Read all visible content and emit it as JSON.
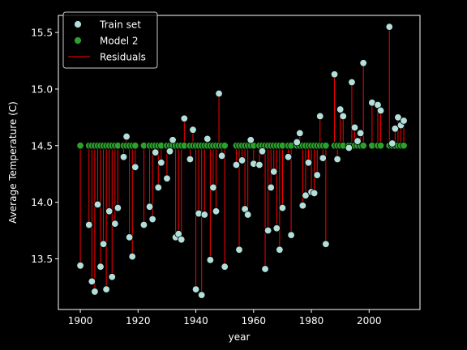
{
  "chart_data": {
    "type": "scatter",
    "title": "",
    "xlabel": "year",
    "ylabel": "Average Temperature (C)",
    "xlim": [
      1892.4,
      2017.6
    ],
    "ylim": [
      13.052,
      15.651
    ],
    "xticks": [
      1900,
      1920,
      1940,
      1960,
      1980,
      2000
    ],
    "yticks": [
      13.5,
      14.0,
      14.5,
      15.0,
      15.5
    ],
    "grid": false,
    "legend_position": "top-left",
    "model_value": 14.5,
    "legend": [
      {
        "label": "Train set"
      },
      {
        "label": "Model 2"
      },
      {
        "label": "Residuals"
      }
    ],
    "colors": {
      "background": "#000000",
      "train_point": "#b2dfdb",
      "model_point": "#2ca02c",
      "residual_line": "#ff0000",
      "text": "#ffffff"
    },
    "series": [
      {
        "name": "Train set",
        "x": [
          1900,
          1903,
          1904,
          1905,
          1906,
          1907,
          1908,
          1909,
          1910,
          1911,
          1912,
          1913,
          1915,
          1916,
          1917,
          1918,
          1919,
          1922,
          1924,
          1925,
          1926,
          1927,
          1928,
          1930,
          1931,
          1932,
          1933,
          1934,
          1935,
          1936,
          1938,
          1939,
          1940,
          1941,
          1942,
          1943,
          1944,
          1945,
          1946,
          1947,
          1948,
          1949,
          1950,
          1954,
          1955,
          1956,
          1957,
          1958,
          1959,
          1960,
          1962,
          1963,
          1964,
          1965,
          1966,
          1967,
          1968,
          1969,
          1970,
          1972,
          1973,
          1975,
          1976,
          1977,
          1978,
          1979,
          1980,
          1981,
          1982,
          1983,
          1984,
          1985,
          1988,
          1989,
          1990,
          1991,
          1993,
          1994,
          1995,
          1996,
          1997,
          1998,
          2001,
          2003,
          2004,
          2007,
          2008,
          2009,
          2010,
          2011,
          2012
        ],
        "y": [
          13.44,
          13.8,
          13.3,
          13.21,
          13.98,
          13.43,
          13.63,
          13.23,
          13.92,
          13.34,
          13.81,
          13.95,
          14.4,
          14.58,
          13.69,
          13.52,
          14.31,
          13.8,
          13.96,
          13.85,
          14.44,
          14.13,
          14.35,
          14.21,
          14.45,
          14.55,
          13.69,
          13.72,
          13.67,
          14.74,
          14.38,
          14.64,
          13.23,
          13.9,
          13.18,
          13.89,
          14.56,
          13.49,
          14.13,
          13.92,
          14.96,
          14.41,
          13.43,
          14.33,
          13.58,
          14.37,
          13.94,
          13.89,
          14.55,
          14.34,
          14.33,
          14.45,
          13.41,
          13.75,
          14.13,
          14.27,
          13.77,
          13.58,
          13.95,
          14.4,
          13.71,
          14.53,
          14.61,
          13.97,
          14.06,
          14.35,
          14.09,
          14.08,
          14.24,
          14.76,
          14.39,
          13.63,
          15.13,
          14.38,
          14.82,
          14.76,
          14.48,
          15.06,
          14.66,
          14.54,
          14.61,
          15.23,
          14.88,
          14.86,
          14.81,
          15.55,
          14.52,
          14.65,
          14.75,
          14.68,
          14.72
        ]
      },
      {
        "name": "Model 2",
        "x": [
          1900,
          1903,
          1904,
          1905,
          1906,
          1907,
          1908,
          1909,
          1910,
          1911,
          1912,
          1913,
          1915,
          1916,
          1917,
          1918,
          1919,
          1922,
          1924,
          1925,
          1926,
          1927,
          1928,
          1930,
          1931,
          1932,
          1933,
          1934,
          1935,
          1936,
          1938,
          1939,
          1940,
          1941,
          1942,
          1943,
          1944,
          1945,
          1946,
          1947,
          1948,
          1949,
          1950,
          1954,
          1955,
          1956,
          1957,
          1958,
          1959,
          1960,
          1962,
          1963,
          1964,
          1965,
          1966,
          1967,
          1968,
          1969,
          1970,
          1972,
          1973,
          1975,
          1976,
          1977,
          1978,
          1979,
          1980,
          1981,
          1982,
          1983,
          1984,
          1985,
          1988,
          1989,
          1990,
          1991,
          1993,
          1994,
          1995,
          1996,
          1997,
          1998,
          2001,
          2003,
          2004,
          2007,
          2008,
          2009,
          2010,
          2011,
          2012
        ],
        "y": [
          14.5,
          14.5,
          14.5,
          14.5,
          14.5,
          14.5,
          14.5,
          14.5,
          14.5,
          14.5,
          14.5,
          14.5,
          14.5,
          14.5,
          14.5,
          14.5,
          14.5,
          14.5,
          14.5,
          14.5,
          14.5,
          14.5,
          14.5,
          14.5,
          14.5,
          14.5,
          14.5,
          14.5,
          14.5,
          14.5,
          14.5,
          14.5,
          14.5,
          14.5,
          14.5,
          14.5,
          14.5,
          14.5,
          14.5,
          14.5,
          14.5,
          14.5,
          14.5,
          14.5,
          14.5,
          14.5,
          14.5,
          14.5,
          14.5,
          14.5,
          14.5,
          14.5,
          14.5,
          14.5,
          14.5,
          14.5,
          14.5,
          14.5,
          14.5,
          14.5,
          14.5,
          14.5,
          14.5,
          14.5,
          14.5,
          14.5,
          14.5,
          14.5,
          14.5,
          14.5,
          14.5,
          14.5,
          14.5,
          14.5,
          14.5,
          14.5,
          14.5,
          14.5,
          14.5,
          14.5,
          14.5,
          14.5,
          14.5,
          14.5,
          14.5,
          14.5,
          14.5,
          14.5,
          14.5,
          14.5,
          14.5
        ]
      }
    ]
  }
}
